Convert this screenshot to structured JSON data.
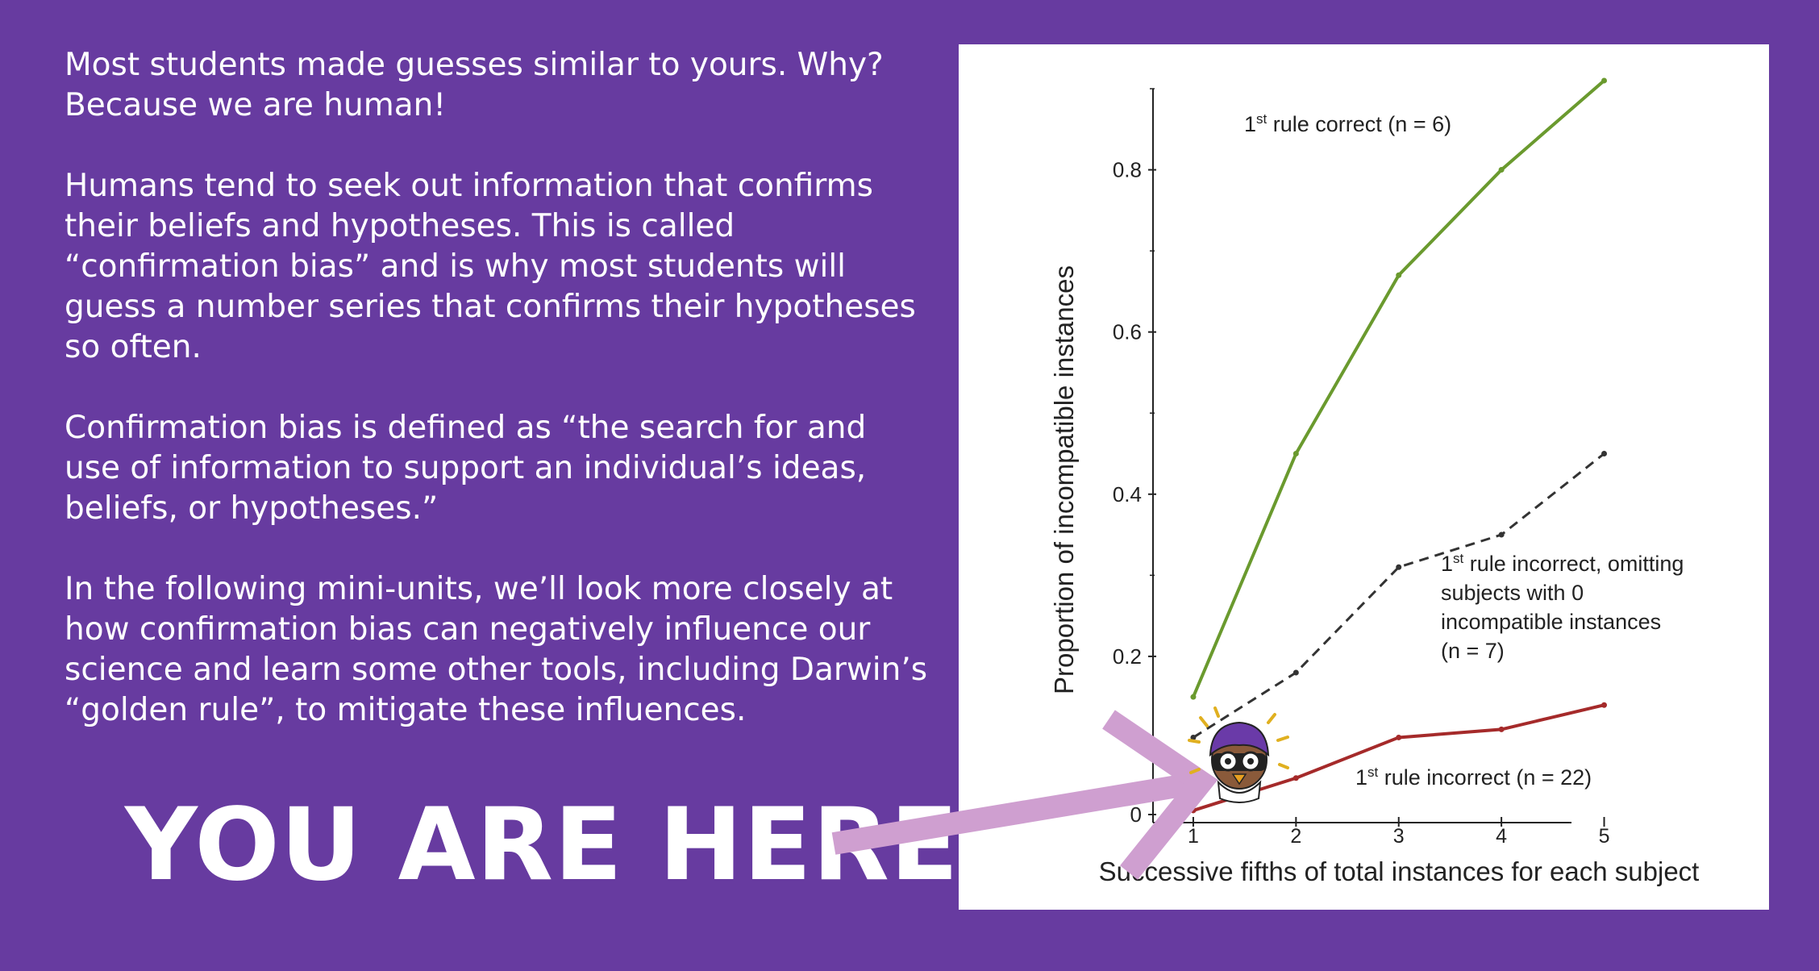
{
  "text": {
    "paragraphs": [
      "Most students made guesses similar to yours. Why? Because we are human!",
      "Humans tend to seek out information that confirms their beliefs and hypotheses. This is called “confirmation bias” and is why most students will guess a number series that confirms their hypotheses so often.",
      "Confirmation bias is defined as “the search for and use of information to support an individual’s ideas, beliefs, or hypotheses.”",
      "In the following mini-units, we’ll look more closely at how confirmation bias can negatively influence our science and learn some other tools, including Darwin’s “golden rule”, to mitigate these influences."
    ],
    "headline": "YOU ARE HERE"
  },
  "chart_data": {
    "type": "line",
    "xlabel": "Successive fifths of total instances for each subject",
    "ylabel": "Proportion of incompatible instances",
    "x": [
      1,
      2,
      3,
      4,
      5
    ],
    "xticks": [
      "1",
      "2",
      "3",
      "4",
      "5"
    ],
    "yticks": [
      "0",
      "0.2",
      "0.4",
      "0.6",
      "0.8"
    ],
    "ylim": [
      0,
      0.9
    ],
    "xlim": [
      0.6,
      5.2
    ],
    "series": [
      {
        "name": "rule correct (n = 6)",
        "prefix": "1",
        "sup": "st",
        "values": [
          0.15,
          0.45,
          0.67,
          0.8,
          0.91
        ],
        "color": "#6a9a2e",
        "dashed": false
      },
      {
        "name": "rule incorrect, omitting subjects with 0 incompatible instances (n = 7)",
        "label_lines": [
          "rule incorrect, omitting",
          "subjects with 0",
          "incompatible instances",
          "(n = 7)"
        ],
        "prefix": "1",
        "sup": "st",
        "values": [
          0.1,
          0.18,
          0.31,
          0.35,
          0.45
        ],
        "color": "#333333",
        "dashed": true
      },
      {
        "name": "rule incorrect (n = 22)",
        "prefix": "1",
        "sup": "st",
        "values": [
          0.01,
          0.05,
          0.1,
          0.11,
          0.14
        ],
        "color": "#a52a2a",
        "dashed": false
      }
    ]
  },
  "colors": {
    "background": "#673ba0",
    "arrow": "#cf9fd0",
    "panel": "#ffffff"
  },
  "icons": {
    "mascot": "scientist-mascot-icon",
    "arrow": "arrow-pointer-icon"
  }
}
